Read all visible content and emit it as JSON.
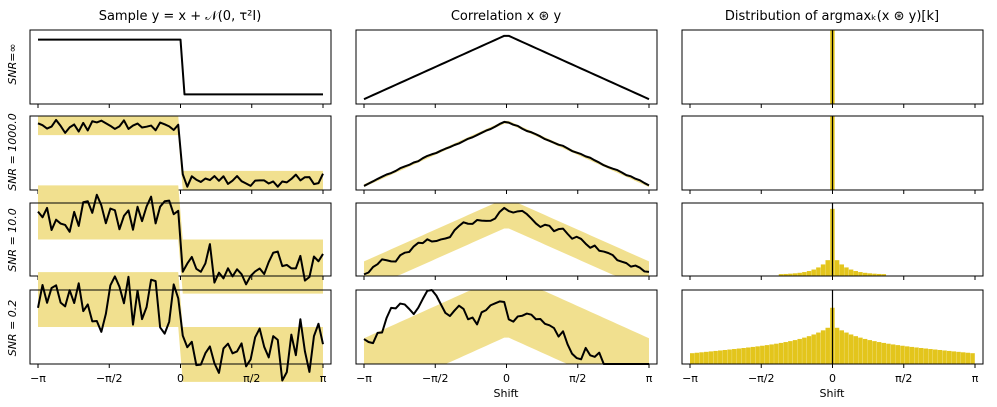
{
  "figure": {
    "colors": {
      "band": "#f1e08f",
      "line": "#000000",
      "bar": "#e3c51c"
    }
  },
  "chart_data": {
    "type": "line",
    "columns": [
      {
        "title": "Sample y = x + 𝒩(0, τ²I)",
        "xlabel": "",
        "kind": "sample"
      },
      {
        "title": "Correlation x ⊛ y",
        "xlabel": "Shift",
        "kind": "correlation"
      },
      {
        "title": "Distribution of argmaxₖ(x ⊛ y)[k]",
        "xlabel": "Shift",
        "kind": "histogram"
      }
    ],
    "rows": [
      {
        "label": "SNR=∞"
      },
      {
        "label": "SNR = 1000.0"
      },
      {
        "label": "SNR = 10.0"
      },
      {
        "label": "SNR = 0.2"
      }
    ],
    "xlim": [
      -3.1416,
      3.1416
    ],
    "xticks": [
      {
        "value": -3.1416,
        "label": "−π"
      },
      {
        "value": -1.5708,
        "label": "−π/2"
      },
      {
        "value": 0,
        "label": "0"
      },
      {
        "value": 1.5708,
        "label": "π/2"
      },
      {
        "value": 3.1416,
        "label": "π"
      }
    ],
    "sample": {
      "n": 64,
      "ylim": [
        -1.35,
        1.35
      ],
      "step": {
        "high": 1,
        "low": -1,
        "switch_at": 0
      },
      "band_halfwidth": [
        0,
        0.35,
        1.0,
        1.0
      ],
      "noise_amplitude": [
        0,
        0.2,
        0.58,
        0.95
      ]
    },
    "correlation": {
      "n": 64,
      "ylim": [
        -1.15,
        1.15
      ],
      "peak": 1,
      "band_halfwidth": [
        0,
        0.06,
        0.62,
        1.3
      ],
      "noise_amplitude": [
        0,
        0.05,
        0.22,
        0.55
      ],
      "curve_shift": [
        0,
        0,
        0,
        0.55
      ]
    },
    "histogram": {
      "bins": 61,
      "ylim": [
        0,
        1
      ],
      "center_mass": [
        1,
        1,
        0.92,
        0.76
      ],
      "floor_level": [
        0,
        0,
        0.02,
        0.32
      ],
      "decay": [
        1,
        1,
        0.22,
        1.6
      ]
    }
  }
}
